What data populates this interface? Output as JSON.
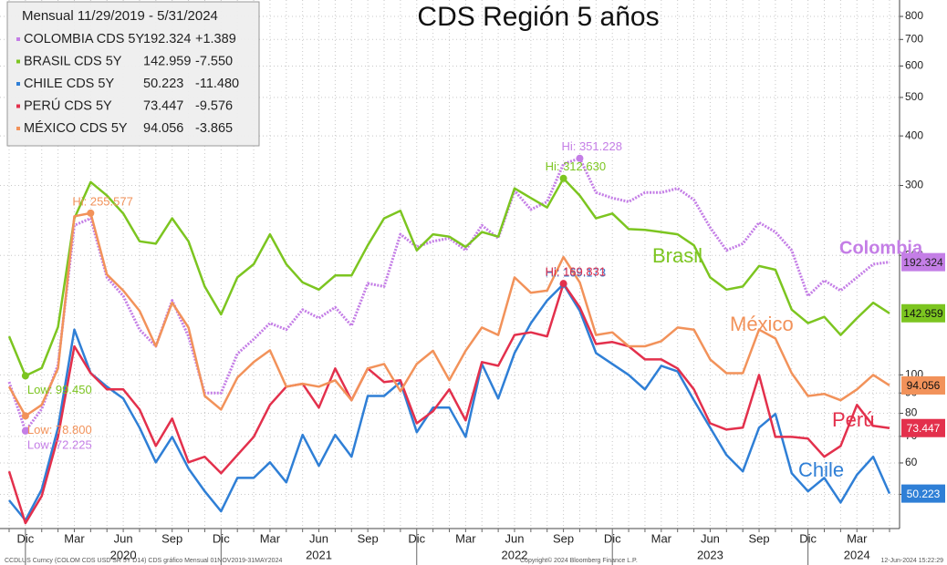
{
  "chart_data": {
    "type": "line",
    "title": "CDS Región 5 años",
    "legend_header": "Mensual 11/29/2019 - 5/31/2024",
    "categories": [
      null,
      "Dic",
      null,
      null,
      "Mar",
      null,
      null,
      "Jun",
      null,
      null,
      "Sep",
      null,
      null,
      "Dic",
      null,
      null,
      "Mar",
      null,
      null,
      "Jun",
      null,
      null,
      "Sep",
      null,
      null,
      "Dic",
      null,
      null,
      "Mar",
      null,
      null,
      "Jun",
      null,
      null,
      "Sep",
      null,
      null,
      "Dic",
      null,
      null,
      "Mar",
      null,
      null,
      "Jun",
      null,
      null,
      "Sep",
      null,
      null,
      "Dic",
      null,
      null,
      "Mar",
      null,
      null
    ],
    "years": [
      "2020",
      "2021",
      "2022",
      "2023",
      "2024"
    ],
    "log_scale": true,
    "grid": true,
    "ylim": [
      41,
      880
    ],
    "yticks": [
      50,
      60,
      70,
      80,
      90,
      100,
      200,
      300,
      400,
      500,
      600,
      700,
      800
    ],
    "series": [
      {
        "name": "COLOMBIA CDS 5Y",
        "label": "Colombia",
        "color": "#c47ee6",
        "dashed": true,
        "change": "+1.389",
        "hi_label": "Hi: 351.228",
        "low_label": "Low: 72.225",
        "values": [
          96,
          72.225,
          82,
          106,
          238,
          248,
          176,
          158,
          130,
          118,
          154,
          125,
          90,
          90,
          113,
          123,
          135,
          130,
          146,
          139,
          148,
          133,
          170,
          167,
          226,
          210,
          217,
          221,
          206,
          238,
          221,
          291,
          261,
          273,
          340,
          351.228,
          288,
          279,
          273,
          288,
          288,
          295,
          276,
          235,
          206,
          214,
          242,
          229,
          206,
          158,
          173,
          163,
          176,
          190,
          192.324
        ]
      },
      {
        "name": "BRASIL CDS 5Y",
        "label": "Brasil",
        "color": "#7cc520",
        "dashed": false,
        "change": "-7.550",
        "hi_label": "Hi: 312.630",
        "low_label": "Low: 99.450",
        "values": [
          125,
          99.45,
          104,
          132,
          248,
          306,
          283,
          255,
          217,
          214,
          248,
          217,
          167,
          142,
          176,
          190,
          226,
          190,
          171,
          164,
          178,
          178,
          212,
          248,
          259,
          206,
          226,
          223,
          210,
          229,
          223,
          295,
          279,
          264,
          312.63,
          283,
          248,
          255,
          233,
          232,
          229,
          226,
          212,
          176,
          164,
          167,
          188,
          184,
          146,
          135,
          140,
          126,
          139,
          152,
          142.959
        ]
      },
      {
        "name": "CHILE CDS 5Y",
        "label": "Chile",
        "color": "#2f7fd6",
        "dashed": false,
        "change": "-11.480",
        "hi_label": "Hi: 169.173",
        "values": [
          48.3,
          43,
          51.4,
          73.6,
          130,
          101,
          93.4,
          87.2,
          73.6,
          60.2,
          69.8,
          58.1,
          50.9,
          45.3,
          55,
          55,
          60.2,
          53.6,
          70.6,
          59,
          70.6,
          62.2,
          88.5,
          88.5,
          95.9,
          71.7,
          82.7,
          82.7,
          69.8,
          106.5,
          87.2,
          113.5,
          135,
          154,
          169.173,
          145,
          113.5,
          106.5,
          100,
          91.9,
          105.4,
          102,
          86.3,
          73.6,
          62.8,
          57.1,
          73.6,
          79.7,
          56.5,
          50.9,
          55,
          47.7,
          56,
          62.2,
          50.223
        ]
      },
      {
        "name": "PERÚ CDS 5Y",
        "label": "Perú",
        "color": "#e3304c",
        "dashed": false,
        "change": "-9.576",
        "hi_label": "Hi: 169.831",
        "values": [
          57.1,
          42.3,
          49.5,
          69.8,
          118,
          101,
          91.9,
          91.9,
          81.8,
          66.2,
          77.6,
          60.2,
          62.2,
          56.5,
          62.8,
          69.8,
          84,
          93.4,
          95,
          82.7,
          103.8,
          86.3,
          103.8,
          95.9,
          96.9,
          75.5,
          81,
          91.9,
          76.8,
          107.7,
          105.4,
          126,
          128,
          125,
          169.831,
          148,
          119.6,
          121,
          118,
          109.4,
          109.4,
          103.8,
          91.9,
          75.5,
          72.8,
          73.6,
          100,
          69.8,
          69.8,
          69.1,
          62.2,
          66.2,
          84,
          74.4,
          73.447
        ]
      },
      {
        "name": "MÉXICO CDS 5Y",
        "label": "México",
        "color": "#f2925a",
        "dashed": false,
        "change": "-3.865",
        "hi_label": "Hi: 255.577",
        "low_label": "Low: 78.800",
        "values": [
          93.4,
          78.8,
          84,
          103.8,
          251,
          255.577,
          179,
          163,
          145,
          118,
          152,
          131.6,
          88.5,
          81.8,
          98.4,
          107.7,
          115.3,
          93.4,
          95,
          93.4,
          96.9,
          86.3,
          103.8,
          106.5,
          90.9,
          106.5,
          115,
          97,
          115,
          131.6,
          126,
          176,
          161,
          163,
          198,
          171,
          126,
          128,
          118,
          118,
          121.6,
          131.6,
          130,
          109.4,
          101,
          101,
          130,
          123.5,
          101,
          88.5,
          89.5,
          86.3,
          91.9,
          100,
          94.056
        ]
      }
    ],
    "footer_left": "CCDLUS Curncy (COLOM CDS USD SR 5Y D14) CDS gráfico  Mensual 01NOV2019-31MAY2024",
    "footer_center": "Copyright© 2024 Bloomberg Finance L.P.",
    "footer_right": "12-Jun-2024 15:22:29"
  }
}
